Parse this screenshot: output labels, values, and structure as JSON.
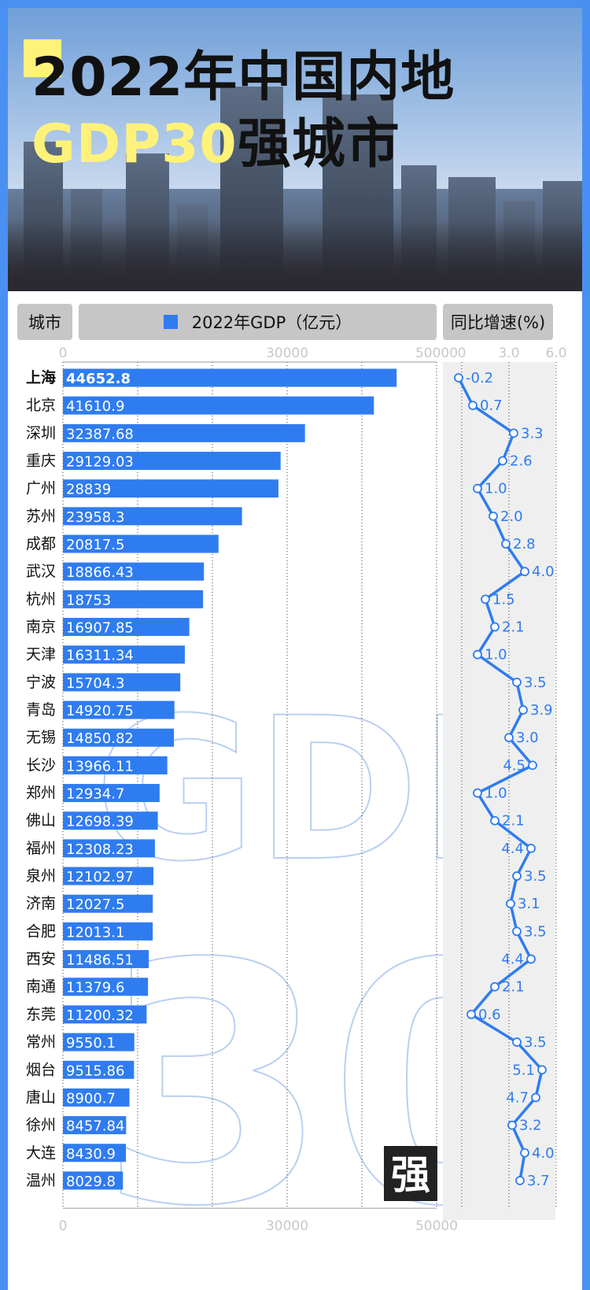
{
  "title": {
    "line1": "2022年中国内地",
    "line2_accent": "GDP30",
    "line2_rest": "强城市"
  },
  "headers": {
    "city": "城市",
    "gdp": "2022年GDP（亿元）",
    "growth": "同比增速(%)"
  },
  "watermark": {
    "gdp": "GDP",
    "num": "30",
    "badge": "强"
  },
  "colors": {
    "bar": "#2f7cf0",
    "line": "#2f7cf0",
    "accent_yellow": "#fff27a",
    "border": "#4a8ff2"
  },
  "chart_data": [
    {
      "type": "bar",
      "orientation": "horizontal",
      "series": [
        {
          "name": "2022年GDP（亿元）"
        }
      ],
      "categories": [
        "上海",
        "北京",
        "深圳",
        "重庆",
        "广州",
        "苏州",
        "成都",
        "武汉",
        "杭州",
        "南京",
        "天津",
        "宁波",
        "青岛",
        "无锡",
        "长沙",
        "郑州",
        "佛山",
        "福州",
        "泉州",
        "济南",
        "合肥",
        "西安",
        "南通",
        "东莞",
        "常州",
        "烟台",
        "唐山",
        "徐州",
        "大连",
        "温州"
      ],
      "values": [
        44652.8,
        41610.9,
        32387.68,
        29129.03,
        28839,
        23958.3,
        20817.5,
        18866.43,
        18753,
        16907.85,
        16311.34,
        15704.3,
        14920.75,
        14850.82,
        13966.11,
        12934.7,
        12698.39,
        12308.23,
        12102.97,
        12027.5,
        12013.1,
        11486.51,
        11379.6,
        11200.32,
        9550.1,
        9515.86,
        8900.7,
        8457.84,
        8430.9,
        8029.8
      ],
      "labels": [
        "44652.8",
        "41610.9",
        "32387.68",
        "29129.03",
        "28839",
        "23958.3",
        "20817.5",
        "18866.43",
        "18753",
        "16907.85",
        "16311.34",
        "15704.3",
        "14920.75",
        "14850.82",
        "13966.11",
        "12934.7",
        "12698.39",
        "12308.23",
        "12102.97",
        "12027.5",
        "12013.1",
        "11486.51",
        "11379.6",
        "11200.32",
        "9550.1",
        "9515.86",
        "8900.7",
        "8457.84",
        "8430.9",
        "8029.8"
      ],
      "xlim": [
        0,
        50000
      ],
      "ticks": [
        {
          "v": 0,
          "label": "0"
        },
        {
          "v": 30000,
          "label": "30000"
        },
        {
          "v": 50000,
          "label": "50000"
        }
      ],
      "grid": true
    },
    {
      "type": "line",
      "orientation": "vertical",
      "series": [
        {
          "name": "同比增速(%)"
        }
      ],
      "categories": [
        "上海",
        "北京",
        "深圳",
        "重庆",
        "广州",
        "苏州",
        "成都",
        "武汉",
        "杭州",
        "南京",
        "天津",
        "宁波",
        "青岛",
        "无锡",
        "长沙",
        "郑州",
        "佛山",
        "福州",
        "泉州",
        "济南",
        "合肥",
        "西安",
        "南通",
        "东莞",
        "常州",
        "烟台",
        "唐山",
        "徐州",
        "大连",
        "温州"
      ],
      "values": [
        -0.2,
        0.7,
        3.3,
        2.6,
        1.0,
        2.0,
        2.8,
        4.0,
        1.5,
        2.1,
        1.0,
        3.5,
        3.9,
        3.0,
        4.5,
        1.0,
        2.1,
        4.4,
        3.5,
        3.1,
        3.5,
        4.4,
        2.1,
        0.6,
        3.5,
        5.1,
        4.7,
        3.2,
        4.0,
        3.7
      ],
      "labels": [
        "-0.2",
        "0.7",
        "3.3",
        "2.6",
        "1.0",
        "2.0",
        "2.8",
        "4.0",
        "1.5",
        "2.1",
        "1.0",
        "3.5",
        "3.9",
        "3.0",
        "4.5",
        "1.0",
        "2.1",
        "4.4",
        "3.5",
        "3.1",
        "3.5",
        "4.4",
        "2.1",
        "0.6",
        "3.5",
        "5.1",
        "4.7",
        "3.2",
        "4.0",
        "3.7"
      ],
      "xlim": [
        0,
        6.0
      ],
      "ticks": [
        {
          "v": 0,
          "label": "0"
        },
        {
          "v": 3,
          "label": "3.0"
        },
        {
          "v": 6,
          "label": "6.0"
        }
      ]
    }
  ]
}
